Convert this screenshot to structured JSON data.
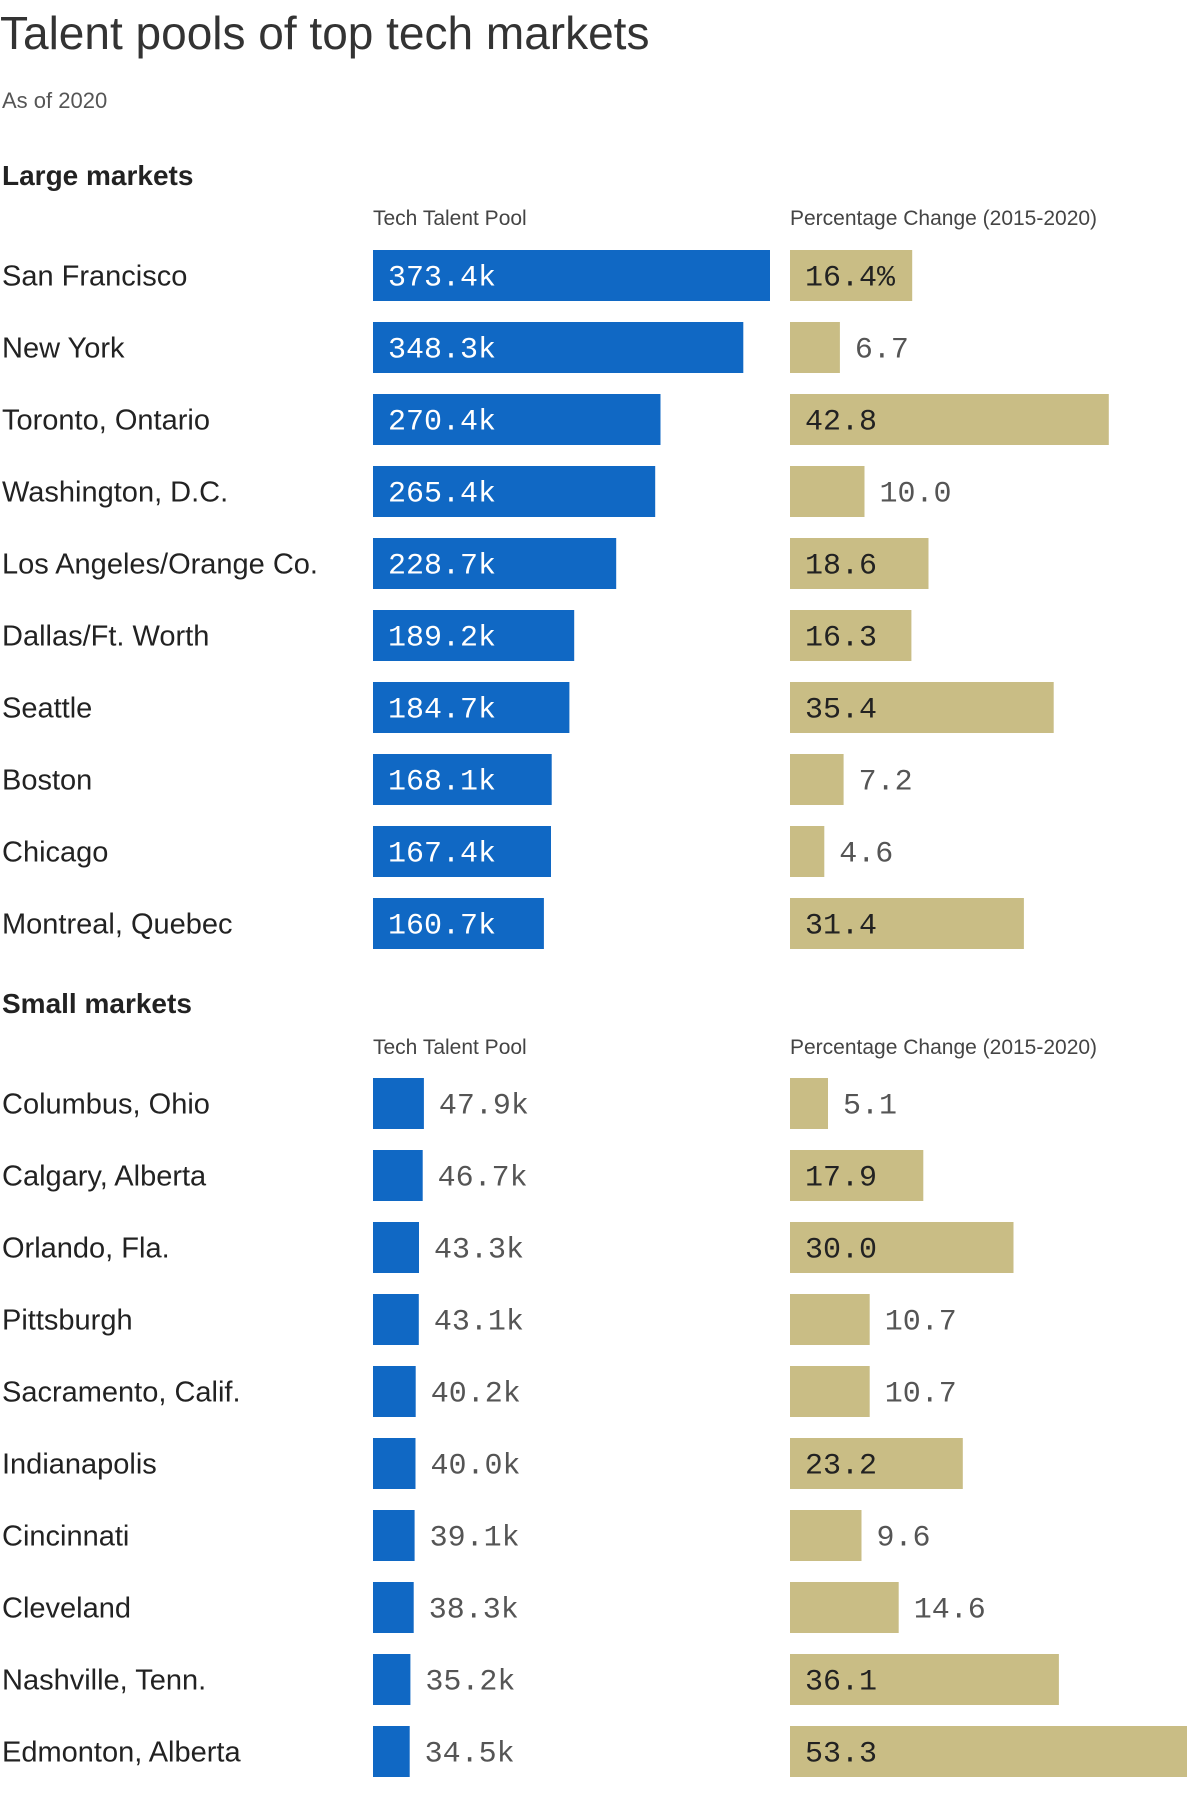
{
  "title": "Talent pools of top tech markets",
  "subtitle": "As of 2020",
  "colors": {
    "pool": "#1068c4",
    "change": "#c9bd85",
    "label_dark": "#222222",
    "label_muted": "#555555",
    "label_light": "#ffffff"
  },
  "chart_data": [
    {
      "type": "bar",
      "title": "Large markets",
      "columns": [
        "Tech Talent Pool",
        "Percentage Change (2015-2020)"
      ],
      "categories": [
        "San Francisco",
        "New York",
        "Toronto, Ontario",
        "Washington, D.C.",
        "Los Angeles/Orange Co.",
        "Dallas/Ft. Worth",
        "Seattle",
        "Boston",
        "Chicago",
        "Montreal, Quebec"
      ],
      "series": [
        {
          "values": [
            373.4,
            348.3,
            270.4,
            265.4,
            228.7,
            189.2,
            184.7,
            168.1,
            167.4,
            160.7
          ],
          "labels": [
            "373.4k",
            "348.3k",
            "270.4k",
            "265.4k",
            "228.7k",
            "189.2k",
            "184.7k",
            "168.1k",
            "167.4k",
            "160.7k"
          ]
        },
        {
          "values": [
            16.4,
            6.7,
            42.8,
            10.0,
            18.6,
            16.3,
            35.4,
            7.2,
            4.6,
            31.4
          ],
          "labels": [
            "16.4%",
            "6.7",
            "42.8",
            "10.0",
            "18.6",
            "16.3",
            "35.4",
            "7.2",
            "4.6",
            "31.4"
          ]
        }
      ]
    },
    {
      "type": "bar",
      "title": "Small markets",
      "columns": [
        "Tech Talent Pool",
        "Percentage Change (2015-2020)"
      ],
      "categories": [
        "Columbus, Ohio",
        "Calgary, Alberta",
        "Orlando, Fla.",
        "Pittsburgh",
        "Sacramento, Calif.",
        "Indianapolis",
        "Cincinnati",
        "Cleveland",
        "Nashville, Tenn.",
        "Edmonton, Alberta"
      ],
      "series": [
        {
          "values": [
            47.9,
            46.7,
            43.3,
            43.1,
            40.2,
            40.0,
            39.1,
            38.3,
            35.2,
            34.5
          ],
          "labels": [
            "47.9k",
            "46.7k",
            "43.3k",
            "43.1k",
            "40.2k",
            "40.0k",
            "39.1k",
            "38.3k",
            "35.2k",
            "34.5k"
          ]
        },
        {
          "values": [
            5.1,
            17.9,
            30.0,
            10.7,
            10.7,
            23.2,
            9.6,
            14.6,
            36.1,
            53.3
          ],
          "labels": [
            "5.1",
            "17.9",
            "30.0",
            "10.7",
            "10.7",
            "23.2",
            "9.6",
            "14.6",
            "36.1",
            "53.3"
          ]
        }
      ]
    }
  ]
}
